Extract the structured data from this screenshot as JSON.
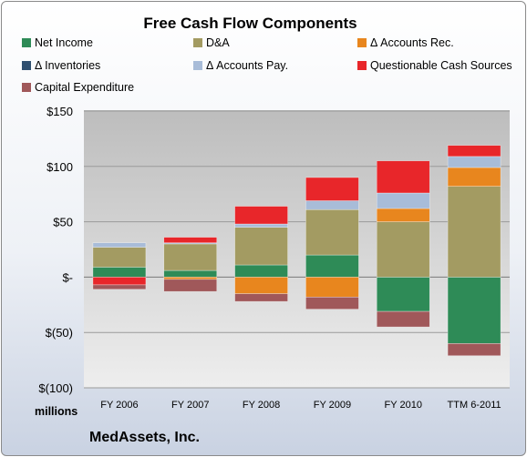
{
  "footer_company": "MedAssets, Inc.",
  "units_label": "millions",
  "chart_data": {
    "type": "stacked-bar",
    "title": "Free Cash Flow Components",
    "ylabel": "",
    "xlabel": "",
    "categories": [
      "FY 2006",
      "FY 2007",
      "FY 2008",
      "FY 2009",
      "FY 2010",
      "TTM 6-2011"
    ],
    "ylim": [
      -100,
      150
    ],
    "yticks": [
      {
        "value": 150,
        "label": "$150"
      },
      {
        "value": 100,
        "label": "$100"
      },
      {
        "value": 50,
        "label": "$50"
      },
      {
        "value": 0,
        "label": "$-"
      },
      {
        "value": -50,
        "label": "$(50)"
      },
      {
        "value": -100,
        "label": "$(100)"
      }
    ],
    "legend_position": "top",
    "series": [
      {
        "name": "Net Income",
        "color": "#2e8b57",
        "values": [
          9,
          6,
          11,
          20,
          -31,
          -60
        ]
      },
      {
        "name": "D&A",
        "color": "#a39b62",
        "values": [
          18,
          24,
          34,
          41,
          50,
          82
        ]
      },
      {
        "name": "Δ Accounts Rec.",
        "color": "#e8861e",
        "values": [
          0,
          -2,
          -15,
          -18,
          12,
          17
        ]
      },
      {
        "name": "Δ Inventories",
        "color": "#2f4f6f",
        "values": [
          0,
          0,
          0,
          0,
          0,
          0
        ]
      },
      {
        "name": "Δ Accounts Pay.",
        "color": "#a8bcd8",
        "values": [
          4,
          1,
          3,
          8,
          14,
          10
        ]
      },
      {
        "name": "Questionable Cash Sources",
        "color": "#e8262a",
        "values": [
          -7,
          5,
          16,
          21,
          29,
          10
        ]
      },
      {
        "name": "Capital Expenditure",
        "color": "#a0585a",
        "values": [
          -4,
          -11,
          -7,
          -11,
          -14,
          -11
        ]
      }
    ]
  }
}
